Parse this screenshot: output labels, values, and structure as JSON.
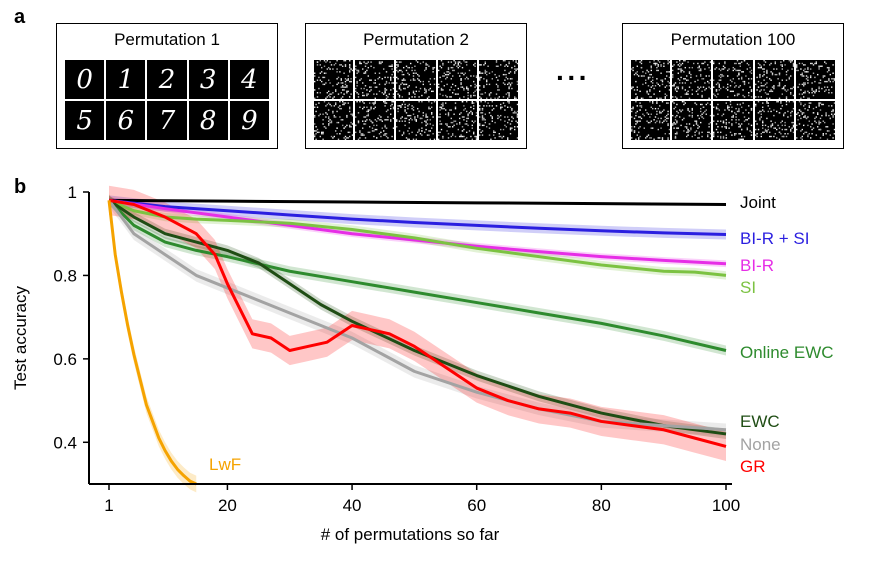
{
  "panel_a": {
    "letter": "a",
    "boxes": [
      {
        "title": "Permutation 1",
        "kind": "digits",
        "digits": [
          "0",
          "1",
          "2",
          "3",
          "4",
          "5",
          "6",
          "7",
          "8",
          "9"
        ]
      },
      {
        "title": "Permutation 2",
        "kind": "noise"
      },
      {
        "title": "Permutation 100",
        "kind": "noise"
      }
    ],
    "ellipsis": "···"
  },
  "chart_data": {
    "panel_letter": "b",
    "type": "line",
    "xlabel": "# of permutations so far",
    "ylabel": "Test accuracy",
    "xlim": [
      1,
      100
    ],
    "ylim": [
      0.3,
      1.0
    ],
    "xticks": [
      1,
      20,
      40,
      60,
      80,
      100
    ],
    "yticks": [
      0.4,
      0.6,
      0.8,
      1
    ],
    "ytick_labels": [
      "0.4",
      "0.6",
      "0.8",
      "1"
    ],
    "grid": false,
    "legend": "inline labels at right end of lines",
    "series": [
      {
        "name": "Joint",
        "color": "#000000",
        "band": 0.0,
        "points": [
          [
            1,
            0.98
          ],
          [
            20,
            0.978
          ],
          [
            40,
            0.976
          ],
          [
            60,
            0.974
          ],
          [
            80,
            0.972
          ],
          [
            100,
            0.97
          ]
        ]
      },
      {
        "name": "BI-R + SI",
        "color": "#2b1fe0",
        "band": 0.012,
        "points": [
          [
            1,
            0.98
          ],
          [
            10,
            0.965
          ],
          [
            20,
            0.955
          ],
          [
            30,
            0.945
          ],
          [
            40,
            0.935
          ],
          [
            50,
            0.927
          ],
          [
            60,
            0.92
          ],
          [
            70,
            0.913
          ],
          [
            80,
            0.907
          ],
          [
            90,
            0.902
          ],
          [
            100,
            0.898
          ]
        ]
      },
      {
        "name": "BI-R",
        "color": "#e62ee6",
        "band": 0.008,
        "points": [
          [
            1,
            0.98
          ],
          [
            10,
            0.96
          ],
          [
            20,
            0.94
          ],
          [
            30,
            0.92
          ],
          [
            40,
            0.9
          ],
          [
            50,
            0.885
          ],
          [
            60,
            0.87
          ],
          [
            70,
            0.857
          ],
          [
            80,
            0.845
          ],
          [
            90,
            0.836
          ],
          [
            100,
            0.828
          ]
        ]
      },
      {
        "name": "SI",
        "color": "#7cc242",
        "band": 0.01,
        "points": [
          [
            1,
            0.98
          ],
          [
            5,
            0.955
          ],
          [
            10,
            0.94
          ],
          [
            15,
            0.935
          ],
          [
            20,
            0.932
          ],
          [
            30,
            0.925
          ],
          [
            40,
            0.91
          ],
          [
            50,
            0.89
          ],
          [
            60,
            0.865
          ],
          [
            70,
            0.845
          ],
          [
            80,
            0.825
          ],
          [
            90,
            0.81
          ],
          [
            95,
            0.808
          ],
          [
            100,
            0.8
          ]
        ]
      },
      {
        "name": "Online EWC",
        "color": "#2e8b2e",
        "band": 0.012,
        "points": [
          [
            1,
            0.98
          ],
          [
            5,
            0.92
          ],
          [
            10,
            0.88
          ],
          [
            15,
            0.86
          ],
          [
            20,
            0.845
          ],
          [
            30,
            0.81
          ],
          [
            40,
            0.785
          ],
          [
            50,
            0.76
          ],
          [
            60,
            0.735
          ],
          [
            70,
            0.71
          ],
          [
            80,
            0.685
          ],
          [
            90,
            0.655
          ],
          [
            100,
            0.62
          ]
        ]
      },
      {
        "name": "EWC",
        "color": "#1f4d14",
        "band": 0.012,
        "points": [
          [
            1,
            0.98
          ],
          [
            5,
            0.94
          ],
          [
            10,
            0.9
          ],
          [
            15,
            0.88
          ],
          [
            20,
            0.86
          ],
          [
            25,
            0.83
          ],
          [
            30,
            0.78
          ],
          [
            35,
            0.73
          ],
          [
            40,
            0.69
          ],
          [
            50,
            0.62
          ],
          [
            60,
            0.56
          ],
          [
            70,
            0.51
          ],
          [
            80,
            0.47
          ],
          [
            90,
            0.44
          ],
          [
            100,
            0.42
          ]
        ]
      },
      {
        "name": "None",
        "color": "#a3a3a3",
        "band": 0.015,
        "points": [
          [
            1,
            0.98
          ],
          [
            5,
            0.9
          ],
          [
            10,
            0.85
          ],
          [
            15,
            0.8
          ],
          [
            20,
            0.77
          ],
          [
            30,
            0.71
          ],
          [
            40,
            0.65
          ],
          [
            50,
            0.57
          ],
          [
            60,
            0.52
          ],
          [
            70,
            0.48
          ],
          [
            80,
            0.45
          ],
          [
            90,
            0.44
          ],
          [
            100,
            0.43
          ]
        ]
      },
      {
        "name": "GR",
        "color": "#ff0000",
        "band": 0.035,
        "points": [
          [
            1,
            0.98
          ],
          [
            5,
            0.97
          ],
          [
            10,
            0.94
          ],
          [
            15,
            0.9
          ],
          [
            18,
            0.85
          ],
          [
            20,
            0.78
          ],
          [
            22,
            0.72
          ],
          [
            24,
            0.66
          ],
          [
            27,
            0.65
          ],
          [
            30,
            0.62
          ],
          [
            33,
            0.63
          ],
          [
            36,
            0.64
          ],
          [
            40,
            0.68
          ],
          [
            43,
            0.67
          ],
          [
            46,
            0.66
          ],
          [
            50,
            0.63
          ],
          [
            55,
            0.58
          ],
          [
            60,
            0.53
          ],
          [
            65,
            0.5
          ],
          [
            70,
            0.48
          ],
          [
            75,
            0.47
          ],
          [
            80,
            0.45
          ],
          [
            85,
            0.44
          ],
          [
            90,
            0.43
          ],
          [
            95,
            0.41
          ],
          [
            100,
            0.39
          ]
        ]
      },
      {
        "name": "LwF",
        "color": "#f5a300",
        "band": 0.02,
        "points": [
          [
            1,
            0.98
          ],
          [
            2,
            0.85
          ],
          [
            3,
            0.76
          ],
          [
            4,
            0.68
          ],
          [
            5,
            0.61
          ],
          [
            6,
            0.55
          ],
          [
            7,
            0.49
          ],
          [
            8,
            0.45
          ],
          [
            9,
            0.41
          ],
          [
            10,
            0.38
          ],
          [
            11,
            0.355
          ],
          [
            12,
            0.335
          ],
          [
            13,
            0.32
          ],
          [
            14,
            0.307
          ],
          [
            15,
            0.3
          ]
        ]
      }
    ],
    "labels": [
      {
        "text": "Joint",
        "color": "#000000",
        "series": "Joint"
      },
      {
        "text": "BI-R + SI",
        "color": "#2b1fe0",
        "series": "BI-R + SI"
      },
      {
        "text": "BI-R",
        "color": "#e62ee6",
        "series": "BI-R"
      },
      {
        "text": "SI",
        "color": "#7cc242",
        "series": "SI"
      },
      {
        "text": "Online EWC",
        "color": "#2e8b2e",
        "series": "Online EWC"
      },
      {
        "text": "EWC",
        "color": "#1f4d14",
        "series": "EWC"
      },
      {
        "text": "None",
        "color": "#a3a3a3",
        "series": "None"
      },
      {
        "text": "GR",
        "color": "#ff0000",
        "series": "GR"
      },
      {
        "text": "LwF",
        "color": "#f5a300",
        "series": "LwF"
      }
    ]
  }
}
